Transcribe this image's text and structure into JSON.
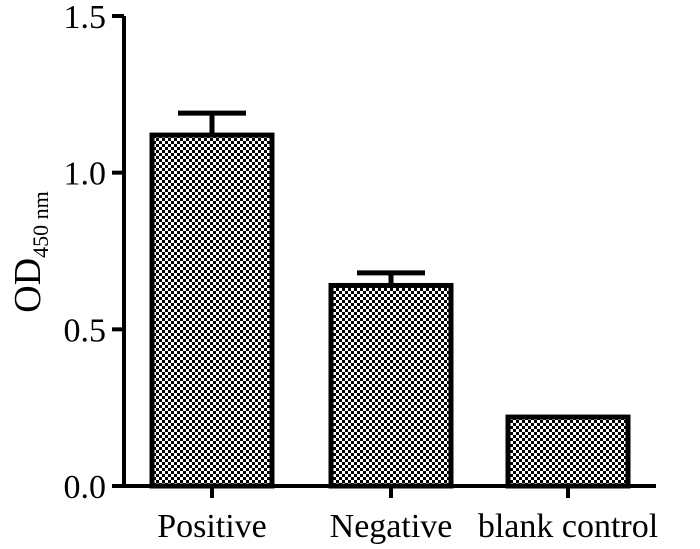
{
  "chart_data": {
    "type": "bar",
    "title": "",
    "xlabel": "",
    "ylabel": "OD",
    "ylabel_subscript": "450 nm",
    "categories": [
      "Positive",
      "Negative",
      "blank control"
    ],
    "values": [
      1.12,
      0.64,
      0.22
    ],
    "errors": [
      0.07,
      0.04,
      0.0
    ],
    "ylim": [
      0,
      1.5
    ],
    "yticks": [
      0.0,
      0.5,
      1.0,
      1.5
    ],
    "ytick_labels": [
      "0.0",
      "0.5",
      "1.0",
      "1.5"
    ],
    "grid": false,
    "legend": "none",
    "bar_fill": "checkered gray",
    "colors": {
      "stroke": "#000000",
      "fill_dark": "#000000",
      "fill_light": "#ffffff"
    }
  }
}
